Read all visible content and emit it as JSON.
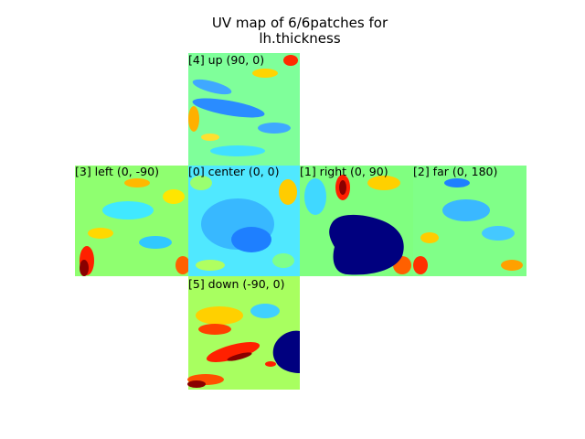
{
  "title": {
    "line1": "UV map of 6/6patches for",
    "line2": "lh.thickness"
  },
  "colormap": [
    "#00007f",
    "#0000ff",
    "#007fff",
    "#00ffff",
    "#7fff7f",
    "#ffff00",
    "#ff7f00",
    "#ff0000",
    "#7f0000"
  ],
  "patches": [
    {
      "id": "up",
      "label": "[4] up (90, 0)",
      "tone": 0.4,
      "seed": 4
    },
    {
      "id": "left",
      "label": "[3] left (0, -90)",
      "tone": 0.52,
      "seed": 3
    },
    {
      "id": "center",
      "label": "[0] center (0, 0)",
      "tone": 0.38,
      "seed": 0
    },
    {
      "id": "right",
      "label": "[1] right (0, 90)",
      "tone": 0.5,
      "seed": 1
    },
    {
      "id": "far",
      "label": "[2] far (0, 180)",
      "tone": 0.48,
      "seed": 2
    },
    {
      "id": "down",
      "label": "[5] down (-90, 0)",
      "tone": 0.6,
      "seed": 5
    }
  ]
}
